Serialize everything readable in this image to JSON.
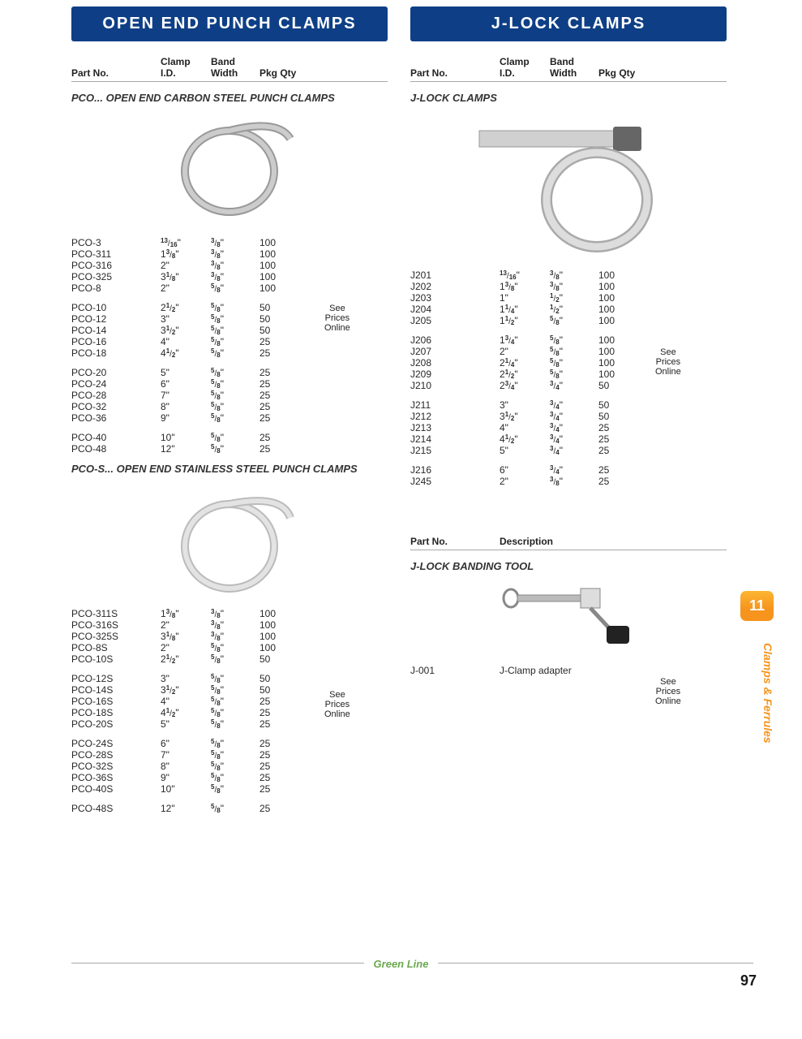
{
  "left": {
    "title": "OPEN END PUNCH CLAMPS",
    "headers": {
      "part": "Part No.",
      "id1": "Clamp",
      "id2": "I.D.",
      "band1": "Band",
      "band2": "Width",
      "qty": "Pkg Qty"
    },
    "section1": "PCO... OPEN END CARBON STEEL PUNCH CLAMPS",
    "see_prices": "See\nPrices\nOnline",
    "groups1": [
      [
        {
          "part": "PCO-3",
          "id": {
            "w": "",
            "n": "13",
            "d": "16"
          },
          "band": {
            "n": "3",
            "d": "8"
          },
          "qty": "100"
        },
        {
          "part": "PCO-311",
          "id": {
            "w": "1",
            "n": "3",
            "d": "8"
          },
          "band": {
            "n": "3",
            "d": "8"
          },
          "qty": "100"
        },
        {
          "part": "PCO-316",
          "id": {
            "w": "2"
          },
          "band": {
            "n": "3",
            "d": "8"
          },
          "qty": "100"
        },
        {
          "part": "PCO-325",
          "id": {
            "w": "3",
            "n": "1",
            "d": "8"
          },
          "band": {
            "n": "3",
            "d": "8"
          },
          "qty": "100"
        },
        {
          "part": "PCO-8",
          "id": {
            "w": "2"
          },
          "band": {
            "n": "5",
            "d": "8"
          },
          "qty": "100"
        }
      ],
      [
        {
          "part": "PCO-10",
          "id": {
            "w": "2",
            "n": "1",
            "d": "2"
          },
          "band": {
            "n": "5",
            "d": "8"
          },
          "qty": "50"
        },
        {
          "part": "PCO-12",
          "id": {
            "w": "3"
          },
          "band": {
            "n": "5",
            "d": "8"
          },
          "qty": "50"
        },
        {
          "part": "PCO-14",
          "id": {
            "w": "3",
            "n": "1",
            "d": "2"
          },
          "band": {
            "n": "5",
            "d": "8"
          },
          "qty": "50"
        },
        {
          "part": "PCO-16",
          "id": {
            "w": "4"
          },
          "band": {
            "n": "5",
            "d": "8"
          },
          "qty": "25"
        },
        {
          "part": "PCO-18",
          "id": {
            "w": "4",
            "n": "1",
            "d": "2"
          },
          "band": {
            "n": "5",
            "d": "8"
          },
          "qty": "25"
        }
      ],
      [
        {
          "part": "PCO-20",
          "id": {
            "w": "5"
          },
          "band": {
            "n": "5",
            "d": "8"
          },
          "qty": "25"
        },
        {
          "part": "PCO-24",
          "id": {
            "w": "6"
          },
          "band": {
            "n": "5",
            "d": "8"
          },
          "qty": "25"
        },
        {
          "part": "PCO-28",
          "id": {
            "w": "7"
          },
          "band": {
            "n": "5",
            "d": "8"
          },
          "qty": "25"
        },
        {
          "part": "PCO-32",
          "id": {
            "w": "8"
          },
          "band": {
            "n": "5",
            "d": "8"
          },
          "qty": "25"
        },
        {
          "part": "PCO-36",
          "id": {
            "w": "9"
          },
          "band": {
            "n": "5",
            "d": "8"
          },
          "qty": "25"
        }
      ],
      [
        {
          "part": "PCO-40",
          "id": {
            "w": "10"
          },
          "band": {
            "n": "5",
            "d": "8"
          },
          "qty": "25"
        },
        {
          "part": "PCO-48",
          "id": {
            "w": "12"
          },
          "band": {
            "n": "5",
            "d": "8"
          },
          "qty": "25"
        }
      ]
    ],
    "section2": "PCO-S... OPEN END STAINLESS STEEL PUNCH CLAMPS",
    "groups2": [
      [
        {
          "part": "PCO-311S",
          "id": {
            "w": "1",
            "n": "3",
            "d": "8"
          },
          "band": {
            "n": "3",
            "d": "8"
          },
          "qty": "100"
        },
        {
          "part": "PCO-316S",
          "id": {
            "w": "2"
          },
          "band": {
            "n": "3",
            "d": "8"
          },
          "qty": "100"
        },
        {
          "part": "PCO-325S",
          "id": {
            "w": "3",
            "n": "1",
            "d": "8"
          },
          "band": {
            "n": "3",
            "d": "8"
          },
          "qty": "100"
        },
        {
          "part": "PCO-8S",
          "id": {
            "w": "2"
          },
          "band": {
            "n": "5",
            "d": "8"
          },
          "qty": "100"
        },
        {
          "part": "PCO-10S",
          "id": {
            "w": "2",
            "n": "1",
            "d": "2"
          },
          "band": {
            "n": "5",
            "d": "8"
          },
          "qty": "50"
        }
      ],
      [
        {
          "part": "PCO-12S",
          "id": {
            "w": "3"
          },
          "band": {
            "n": "5",
            "d": "8"
          },
          "qty": "50"
        },
        {
          "part": "PCO-14S",
          "id": {
            "w": "3",
            "n": "1",
            "d": "2"
          },
          "band": {
            "n": "5",
            "d": "8"
          },
          "qty": "50"
        },
        {
          "part": "PCO-16S",
          "id": {
            "w": "4"
          },
          "band": {
            "n": "5",
            "d": "8"
          },
          "qty": "25"
        },
        {
          "part": "PCO-18S",
          "id": {
            "w": "4",
            "n": "1",
            "d": "2"
          },
          "band": {
            "n": "5",
            "d": "8"
          },
          "qty": "25"
        },
        {
          "part": "PCO-20S",
          "id": {
            "w": "5"
          },
          "band": {
            "n": "5",
            "d": "8"
          },
          "qty": "25"
        }
      ],
      [
        {
          "part": "PCO-24S",
          "id": {
            "w": "6"
          },
          "band": {
            "n": "5",
            "d": "8"
          },
          "qty": "25"
        },
        {
          "part": "PCO-28S",
          "id": {
            "w": "7"
          },
          "band": {
            "n": "5",
            "d": "8"
          },
          "qty": "25"
        },
        {
          "part": "PCO-32S",
          "id": {
            "w": "8"
          },
          "band": {
            "n": "5",
            "d": "8"
          },
          "qty": "25"
        },
        {
          "part": "PCO-36S",
          "id": {
            "w": "9"
          },
          "band": {
            "n": "5",
            "d": "8"
          },
          "qty": "25"
        },
        {
          "part": "PCO-40S",
          "id": {
            "w": "10"
          },
          "band": {
            "n": "5",
            "d": "8"
          },
          "qty": "25"
        }
      ],
      [
        {
          "part": "PCO-48S",
          "id": {
            "w": "12"
          },
          "band": {
            "n": "5",
            "d": "8"
          },
          "qty": "25"
        }
      ]
    ]
  },
  "right": {
    "title": "J-LOCK CLAMPS",
    "headers": {
      "part": "Part No.",
      "id1": "Clamp",
      "id2": "I.D.",
      "band1": "Band",
      "band2": "Width",
      "qty": "Pkg Qty"
    },
    "section1": "J-LOCK CLAMPS",
    "see_prices": "See\nPrices\nOnline",
    "groups1": [
      [
        {
          "part": "J201",
          "id": {
            "w": "",
            "n": "13",
            "d": "16"
          },
          "band": {
            "n": "3",
            "d": "8"
          },
          "qty": "100"
        },
        {
          "part": "J202",
          "id": {
            "w": "1",
            "n": "3",
            "d": "8"
          },
          "band": {
            "n": "3",
            "d": "8"
          },
          "qty": "100"
        },
        {
          "part": "J203",
          "id": {
            "w": "1"
          },
          "band": {
            "n": "1",
            "d": "2"
          },
          "qty": "100"
        },
        {
          "part": "J204",
          "id": {
            "w": "1",
            "n": "1",
            "d": "4"
          },
          "band": {
            "n": "1",
            "d": "2"
          },
          "qty": "100"
        },
        {
          "part": "J205",
          "id": {
            "w": "1",
            "n": "1",
            "d": "2"
          },
          "band": {
            "n": "5",
            "d": "8"
          },
          "qty": "100"
        }
      ],
      [
        {
          "part": "J206",
          "id": {
            "w": "1",
            "n": "3",
            "d": "4"
          },
          "band": {
            "n": "5",
            "d": "8"
          },
          "qty": "100"
        },
        {
          "part": "J207",
          "id": {
            "w": "2"
          },
          "band": {
            "n": "5",
            "d": "8"
          },
          "qty": "100"
        },
        {
          "part": "J208",
          "id": {
            "w": "2",
            "n": "1",
            "d": "4"
          },
          "band": {
            "n": "5",
            "d": "8"
          },
          "qty": "100"
        },
        {
          "part": "J209",
          "id": {
            "w": "2",
            "n": "1",
            "d": "2"
          },
          "band": {
            "n": "5",
            "d": "8"
          },
          "qty": "100"
        },
        {
          "part": "J210",
          "id": {
            "w": "2",
            "n": "3",
            "d": "4"
          },
          "band": {
            "n": "3",
            "d": "4"
          },
          "qty": "50"
        }
      ],
      [
        {
          "part": "J211",
          "id": {
            "w": "3"
          },
          "band": {
            "n": "3",
            "d": "4"
          },
          "qty": "50"
        },
        {
          "part": "J212",
          "id": {
            "w": "3",
            "n": "1",
            "d": "2"
          },
          "band": {
            "n": "3",
            "d": "4"
          },
          "qty": "50"
        },
        {
          "part": "J213",
          "id": {
            "w": "4"
          },
          "band": {
            "n": "3",
            "d": "4"
          },
          "qty": "25"
        },
        {
          "part": "J214",
          "id": {
            "w": "4",
            "n": "1",
            "d": "2"
          },
          "band": {
            "n": "3",
            "d": "4"
          },
          "qty": "25"
        },
        {
          "part": "J215",
          "id": {
            "w": "5"
          },
          "band": {
            "n": "3",
            "d": "4"
          },
          "qty": "25"
        }
      ],
      [
        {
          "part": "J216",
          "id": {
            "w": "6"
          },
          "band": {
            "n": "3",
            "d": "4"
          },
          "qty": "25"
        },
        {
          "part": "J245",
          "id": {
            "w": "2"
          },
          "band": {
            "n": "3",
            "d": "8"
          },
          "qty": "25"
        }
      ]
    ],
    "headers2": {
      "part": "Part No.",
      "desc": "Description"
    },
    "section2": "J-LOCK BANDING TOOL",
    "tool": {
      "part": "J-001",
      "desc": "J-Clamp adapter"
    }
  },
  "tab": "11",
  "side_label": "Clamps & Ferrules",
  "brand": "Green Line",
  "page_no": "97",
  "colors": {
    "header_bg": "#0e3f86",
    "accent": "#f7941e",
    "brand_green": "#6aa84f",
    "rule": "#a7a9ac"
  }
}
